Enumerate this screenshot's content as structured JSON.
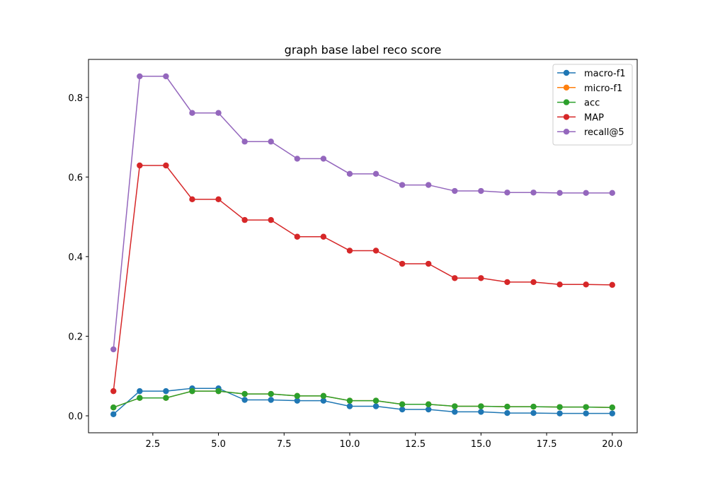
{
  "chart_data": {
    "type": "line",
    "title": "graph base label reco score",
    "xlabel": "",
    "ylabel": "",
    "xlim": [
      0.05,
      20.95
    ],
    "ylim": [
      -0.0426,
      0.8955
    ],
    "xticks": [
      2.5,
      5.0,
      7.5,
      10.0,
      12.5,
      15.0,
      17.5,
      20.0
    ],
    "xtick_labels": [
      "2.5",
      "5.0",
      "7.5",
      "10.0",
      "12.5",
      "15.0",
      "17.5",
      "20.0"
    ],
    "yticks": [
      0.0,
      0.2,
      0.4,
      0.6,
      0.8
    ],
    "ytick_labels": [
      "0.0",
      "0.2",
      "0.4",
      "0.6",
      "0.8"
    ],
    "grid": false,
    "legend_position": "top-right",
    "x": [
      1,
      2,
      3,
      4,
      5,
      6,
      7,
      8,
      9,
      10,
      11,
      12,
      13,
      14,
      15,
      16,
      17,
      18,
      19,
      20
    ],
    "series": [
      {
        "name": "macro-f1",
        "color": "#1f77b4",
        "values": [
          0.004,
          0.062,
          0.062,
          0.069,
          0.069,
          0.04,
          0.04,
          0.038,
          0.038,
          0.024,
          0.024,
          0.016,
          0.016,
          0.01,
          0.01,
          0.007,
          0.007,
          0.006,
          0.006,
          0.006
        ]
      },
      {
        "name": "micro-f1",
        "color": "#ff7f0e",
        "values": [
          0.021,
          0.045,
          0.045,
          0.062,
          0.062,
          0.055,
          0.055,
          0.05,
          0.05,
          0.038,
          0.038,
          0.029,
          0.029,
          0.024,
          0.024,
          0.023,
          0.023,
          0.022,
          0.022,
          0.021
        ]
      },
      {
        "name": "acc",
        "color": "#2ca02c",
        "values": [
          0.021,
          0.045,
          0.045,
          0.062,
          0.062,
          0.055,
          0.055,
          0.05,
          0.05,
          0.038,
          0.038,
          0.029,
          0.029,
          0.024,
          0.024,
          0.023,
          0.023,
          0.022,
          0.022,
          0.021
        ]
      },
      {
        "name": "MAP",
        "color": "#d62728",
        "values": [
          0.062,
          0.629,
          0.629,
          0.544,
          0.544,
          0.492,
          0.492,
          0.45,
          0.45,
          0.415,
          0.415,
          0.382,
          0.382,
          0.346,
          0.346,
          0.336,
          0.336,
          0.33,
          0.33,
          0.329
        ]
      },
      {
        "name": "recall@5",
        "color": "#9467bd",
        "values": [
          0.167,
          0.853,
          0.853,
          0.761,
          0.761,
          0.689,
          0.689,
          0.646,
          0.646,
          0.608,
          0.608,
          0.58,
          0.58,
          0.565,
          0.565,
          0.561,
          0.561,
          0.56,
          0.56,
          0.56
        ]
      }
    ]
  }
}
